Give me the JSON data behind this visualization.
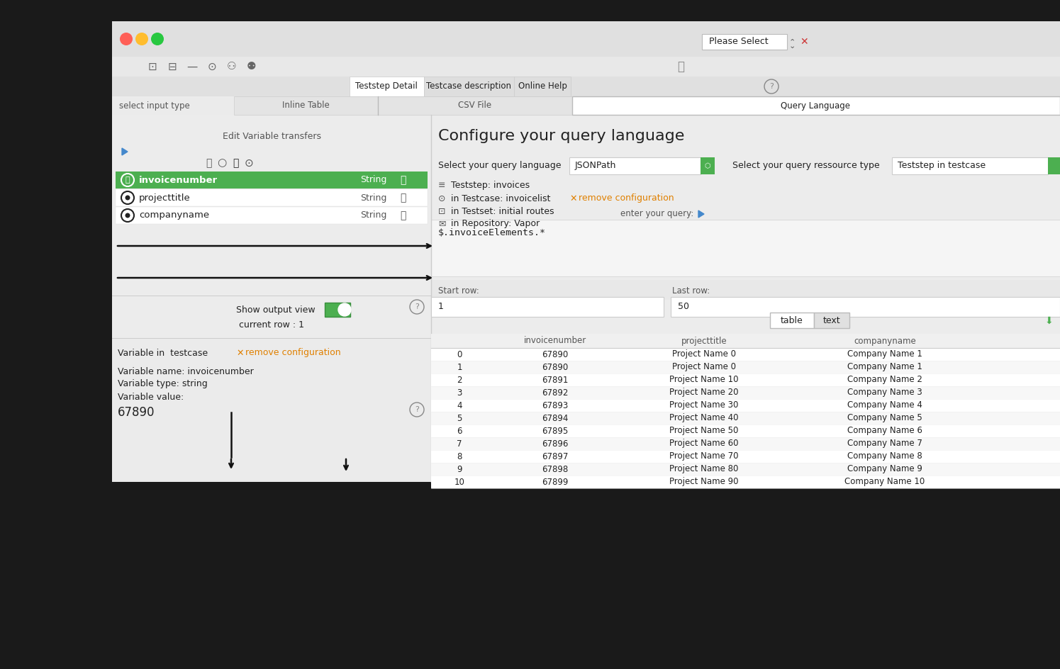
{
  "bg_color": "#1a1a1a",
  "window_bg": "#ececec",
  "titlebar_bg": "#e0e0e0",
  "tab_area_bg": "#d8d8d8",
  "left_panel_bg": "#ececec",
  "right_panel_bg": "#ececec",
  "white": "#ffffff",
  "light_gray": "#f0f0f0",
  "mid_gray": "#d0d0d0",
  "border_gray": "#bbbbbb",
  "green": "#4caf50",
  "green_dark": "#388e3c",
  "orange": "#e08000",
  "blue_arrow": "#4488cc",
  "dark_text": "#222222",
  "mid_text": "#555555",
  "light_text": "#888888",
  "tabs": [
    "Teststep Detail",
    "Testcase description",
    "Online Help"
  ],
  "input_tabs": [
    "Inline Table",
    "CSV File",
    "Query Language"
  ],
  "variables": [
    {
      "name": "invoicenumber",
      "type": "String"
    },
    {
      "name": "projecttitle",
      "type": "String"
    },
    {
      "name": "companyname",
      "type": "String"
    }
  ],
  "query_title": "Configure your query language",
  "query_lang_label": "Select your query language",
  "query_lang_value": "JSONPath",
  "resource_label": "Select your query ressource type",
  "resource_value": "Teststep in testcase",
  "tree_items": [
    "Teststep: invoices",
    "in Testcase: invoicelist",
    "in Testset: initial routes",
    "in Repository: Vapor"
  ],
  "enter_query": "enter your query:",
  "query_text": "$.invoiceElements.*",
  "start_row_label": "Start row:",
  "last_row_label": "Last row:",
  "start_row": "1",
  "last_row": "50",
  "show_output": "Show output view",
  "current_row": "current row : 1",
  "var_in_testcase": "Variable in  testcase",
  "var_name": "Variable name: invoicenumber",
  "var_type": "Variable type: string",
  "var_value_label": "Variable value:",
  "var_value": "67890",
  "edit_var": "Edit Variable transfers",
  "remove_config": "remove configuration",
  "table_headers": [
    "",
    "invoicenumber",
    "projecttitle",
    "companyname"
  ],
  "table_rows": [
    [
      "0",
      "67890",
      "Project Name 0",
      "Company Name 1"
    ],
    [
      "1",
      "67890",
      "Project Name 0",
      "Company Name 1"
    ],
    [
      "2",
      "67891",
      "Project Name 10",
      "Company Name 2"
    ],
    [
      "3",
      "67892",
      "Project Name 20",
      "Company Name 3"
    ],
    [
      "4",
      "67893",
      "Project Name 30",
      "Company Name 4"
    ],
    [
      "5",
      "67894",
      "Project Name 40",
      "Company Name 5"
    ],
    [
      "6",
      "67895",
      "Project Name 50",
      "Company Name 6"
    ],
    [
      "7",
      "67896",
      "Project Name 60",
      "Company Name 7"
    ],
    [
      "8",
      "67897",
      "Project Name 70",
      "Company Name 8"
    ],
    [
      "9",
      "67898",
      "Project Name 80",
      "Company Name 9"
    ],
    [
      "10",
      "67899",
      "Project Name 90",
      "Company Name 10"
    ]
  ]
}
